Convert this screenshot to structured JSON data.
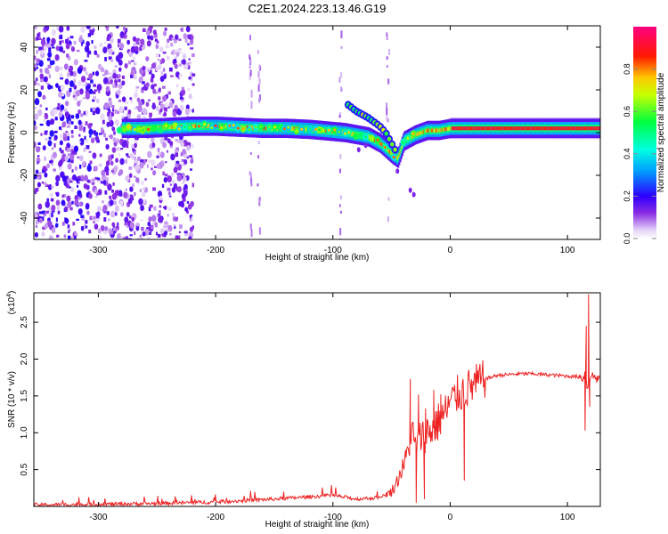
{
  "title": "C2E1.2024.223.13.46.G19",
  "chart_data": [
    {
      "type": "heatmap",
      "xlabel": "Height of straight line (km)",
      "ylabel": "Frequency (Hz)",
      "xlim": [
        -355,
        128
      ],
      "ylim": [
        -50,
        50
      ],
      "xticks": [
        -300,
        -200,
        -100,
        0,
        100
      ],
      "yticks": [
        -40,
        -20,
        0,
        20,
        40
      ],
      "xtick_labels": [
        "-300",
        "-200",
        "-100",
        "0",
        "100"
      ],
      "ytick_labels": [
        "-40",
        "-20",
        "0",
        "20",
        "40"
      ],
      "colorbar": {
        "label": "Normalized spectral amplitude",
        "range": [
          0,
          1
        ],
        "ticks": [
          0.0,
          0.2,
          0.4,
          0.6,
          0.8
        ],
        "tick_labels": [
          "0.0",
          "0.2",
          "0.4",
          "0.6",
          "0.8"
        ],
        "colormap": "rainbow (white-violet-blue-cyan-green-yellow-red-magenta)"
      },
      "main_ridge": [
        [
          -280,
          2
        ],
        [
          -260,
          2
        ],
        [
          -240,
          2.5
        ],
        [
          -220,
          3
        ],
        [
          -200,
          3
        ],
        [
          -180,
          2.5
        ],
        [
          -160,
          2
        ],
        [
          -140,
          2
        ],
        [
          -120,
          1.5
        ],
        [
          -100,
          0.5
        ],
        [
          -90,
          0
        ],
        [
          -80,
          -1
        ],
        [
          -70,
          -2
        ],
        [
          -60,
          -5
        ],
        [
          -50,
          -10
        ],
        [
          -45,
          -12
        ],
        [
          -40,
          -4
        ],
        [
          -30,
          -1
        ],
        [
          -20,
          1
        ],
        [
          -10,
          1
        ],
        [
          0,
          2
        ],
        [
          20,
          2
        ],
        [
          40,
          2
        ],
        [
          60,
          2
        ],
        [
          80,
          2
        ],
        [
          100,
          2
        ],
        [
          110,
          2
        ],
        [
          120,
          2
        ]
      ],
      "upper_branch": [
        [
          -87,
          13
        ],
        [
          -80,
          10
        ],
        [
          -70,
          7
        ],
        [
          -60,
          3
        ],
        [
          -55,
          0
        ],
        [
          -50,
          -5
        ],
        [
          -45,
          -10
        ]
      ]
    },
    {
      "type": "line",
      "xlabel": "Height of straight line (km)",
      "ylabel": "SNR (10 * v/v)",
      "scale_label": "(x10",
      "scale_exponent": "4",
      "xlim": [
        -355,
        128
      ],
      "ylim": [
        0,
        2.9
      ],
      "xticks": [
        -300,
        -200,
        -100,
        0,
        100
      ],
      "yticks": [
        0.5,
        1.0,
        1.5,
        2.0,
        2.5
      ],
      "xtick_labels": [
        "-300",
        "-200",
        "-100",
        "0",
        "100"
      ],
      "ytick_labels": [
        "0.5",
        "1.0",
        "1.5",
        "2.0",
        "2.5"
      ],
      "color": "#ee2222",
      "series": [
        {
          "x": [
            -355,
            -300,
            -250,
            -200,
            -150,
            -120,
            -100,
            -80,
            -60,
            -50,
            -45,
            -40,
            -35,
            -32,
            -30,
            -25,
            -20,
            -15,
            -10,
            -5,
            0,
            5,
            10,
            15,
            20,
            30,
            40,
            50,
            60,
            70,
            80,
            90,
            100,
            110,
            113,
            115,
            117,
            118,
            120,
            125,
            128
          ],
          "y": [
            0.02,
            0.03,
            0.04,
            0.06,
            0.1,
            0.13,
            0.15,
            0.1,
            0.12,
            0.2,
            0.35,
            0.55,
            0.8,
            1.05,
            0.8,
            0.95,
            1.0,
            1.05,
            1.15,
            1.25,
            1.4,
            1.5,
            1.55,
            1.6,
            1.65,
            1.73,
            1.78,
            1.79,
            1.8,
            1.8,
            1.79,
            1.78,
            1.77,
            1.76,
            1.75,
            1.8,
            1.6,
            1.7,
            1.78,
            1.74,
            1.73
          ]
        }
      ],
      "spikes": [
        [
          -34,
          1.73
        ],
        [
          -27,
          1.52
        ],
        [
          -21,
          1.33
        ],
        [
          -14,
          1.58
        ],
        [
          -8,
          1.52
        ],
        [
          -29,
          0.05
        ],
        [
          -22,
          0.1
        ],
        [
          12,
          0.35
        ],
        [
          115,
          1.03
        ],
        [
          116,
          2.45
        ],
        [
          118,
          2.88
        ],
        [
          119,
          1.35
        ]
      ]
    }
  ]
}
